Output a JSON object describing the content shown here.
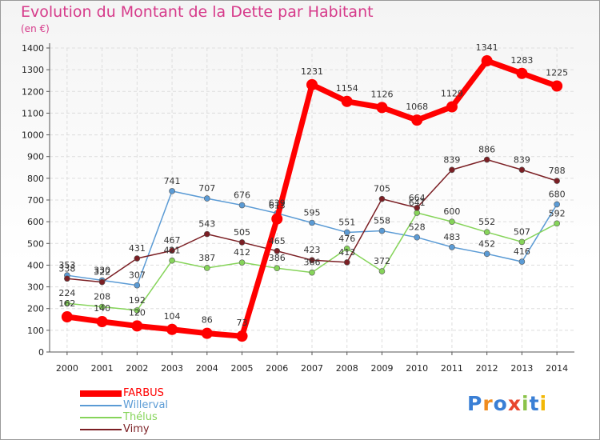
{
  "header": {
    "title": "Evolution du Montant de la Dette par Habitant",
    "subtitle": "(en €)"
  },
  "brand": "Proxiti",
  "chart_data": {
    "type": "line",
    "x": [
      "2000",
      "2001",
      "2002",
      "2003",
      "2004",
      "2005",
      "2006",
      "2007",
      "2008",
      "2009",
      "2010",
      "2011",
      "2012",
      "2013",
      "2014"
    ],
    "ylim": [
      0,
      1400
    ],
    "yticks": [
      0,
      100,
      200,
      300,
      400,
      500,
      600,
      700,
      800,
      900,
      1000,
      1100,
      1200,
      1300,
      1400
    ],
    "grid": true,
    "legend": "bottom-left",
    "series": [
      {
        "name": "FARBUS",
        "color": "#ff0000",
        "values": [
          162,
          140,
          120,
          104,
          86,
          73,
          613,
          1231,
          1154,
          1126,
          1068,
          1129,
          1341,
          1283,
          1225
        ],
        "labels": [
          "162",
          "140",
          "120",
          "104",
          "86",
          "73",
          "613",
          "1231",
          "1154",
          "1126",
          "1068",
          "1129",
          "1341",
          "1283",
          "1225"
        ]
      },
      {
        "name": "Willerval",
        "color": "#5b9bd5",
        "values": [
          353,
          330,
          307,
          741,
          707,
          676,
          639,
          595,
          551,
          558,
          528,
          483,
          452,
          416,
          680
        ],
        "labels": [
          "353",
          "330",
          "307",
          "741",
          "707",
          "676",
          "639",
          "595",
          "551",
          "558",
          "528",
          "483",
          "452",
          "416",
          "680"
        ]
      },
      {
        "name": "Thélus",
        "color": "#86d45a",
        "values": [
          224,
          208,
          192,
          421,
          387,
          412,
          386,
          366,
          476,
          372,
          641,
          600,
          552,
          507,
          592
        ],
        "labels": [
          "224",
          "208",
          "192",
          "421",
          "387",
          "412",
          "386",
          "366",
          "476",
          "372",
          "641",
          "600",
          "552",
          "507",
          "592"
        ]
      },
      {
        "name": "Vimy",
        "color": "#7b1f24",
        "values": [
          338,
          322,
          431,
          467,
          543,
          505,
          465,
          423,
          413,
          705,
          664,
          839,
          886,
          839,
          788
        ],
        "labels": [
          "338",
          "322",
          "431",
          "467",
          "543",
          "505",
          "465",
          "423",
          "413",
          "705",
          "664",
          "839",
          "886",
          "839",
          "788"
        ]
      }
    ]
  }
}
